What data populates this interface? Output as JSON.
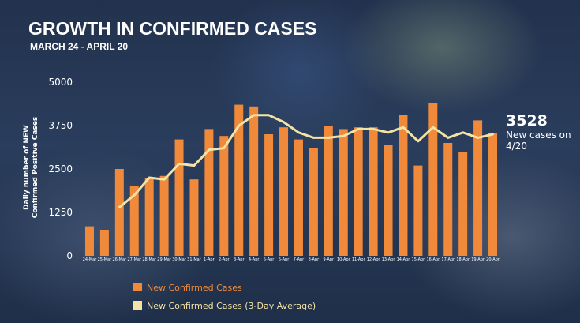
{
  "chart_data": {
    "type": "bar",
    "title": "GROWTH IN CONFIRMED CASES",
    "subtitle": "MARCH 24 - APRIL 20",
    "ylabel_line1": "Daily number of NEW",
    "ylabel_line2": "Confirmed Positive Cases",
    "xlabel": "",
    "ylim": [
      0,
      5000
    ],
    "yticks": [
      0,
      1250,
      2500,
      3750,
      5000
    ],
    "categories": [
      "24-Mar",
      "25-Mar",
      "26-Mar",
      "27-Mar",
      "28-Mar",
      "29-Mar",
      "30-Mar",
      "31-Mar",
      "1-Apr",
      "2-Apr",
      "3-Apr",
      "4-Apr",
      "5-Apr",
      "6-Apr",
      "7-Apr",
      "8-Apr",
      "9-Apr",
      "10-Apr",
      "11-Apr",
      "12-Apr",
      "13-Apr",
      "14-Apr",
      "15-Apr",
      "16-Apr",
      "17-Apr",
      "18-Apr",
      "19-Apr",
      "20-Apr"
    ],
    "series": [
      {
        "name": "New Confirmed Cases",
        "type": "bar",
        "color": "#f08a3a",
        "values": [
          850,
          750,
          2500,
          2000,
          2250,
          2300,
          3350,
          2200,
          3650,
          3450,
          4350,
          4300,
          3500,
          3700,
          3350,
          3100,
          3750,
          3650,
          3700,
          3700,
          3200,
          4050,
          2600,
          4400,
          3250,
          3000,
          3900,
          3528
        ]
      },
      {
        "name": "New Confirmed Cases (3-Day Average)",
        "type": "line",
        "color": "#f3e3a4",
        "values": [
          null,
          null,
          1400,
          1750,
          2250,
          2200,
          2650,
          2600,
          3050,
          3100,
          3750,
          4050,
          4050,
          3850,
          3550,
          3400,
          3400,
          3450,
          3650,
          3650,
          3550,
          3700,
          3300,
          3700,
          3400,
          3550,
          3400,
          3500
        ]
      }
    ],
    "annotation": {
      "value": "3528",
      "text_line1": "New cases on",
      "text_line2": "4/20"
    },
    "legend_position": "bottom-left"
  }
}
